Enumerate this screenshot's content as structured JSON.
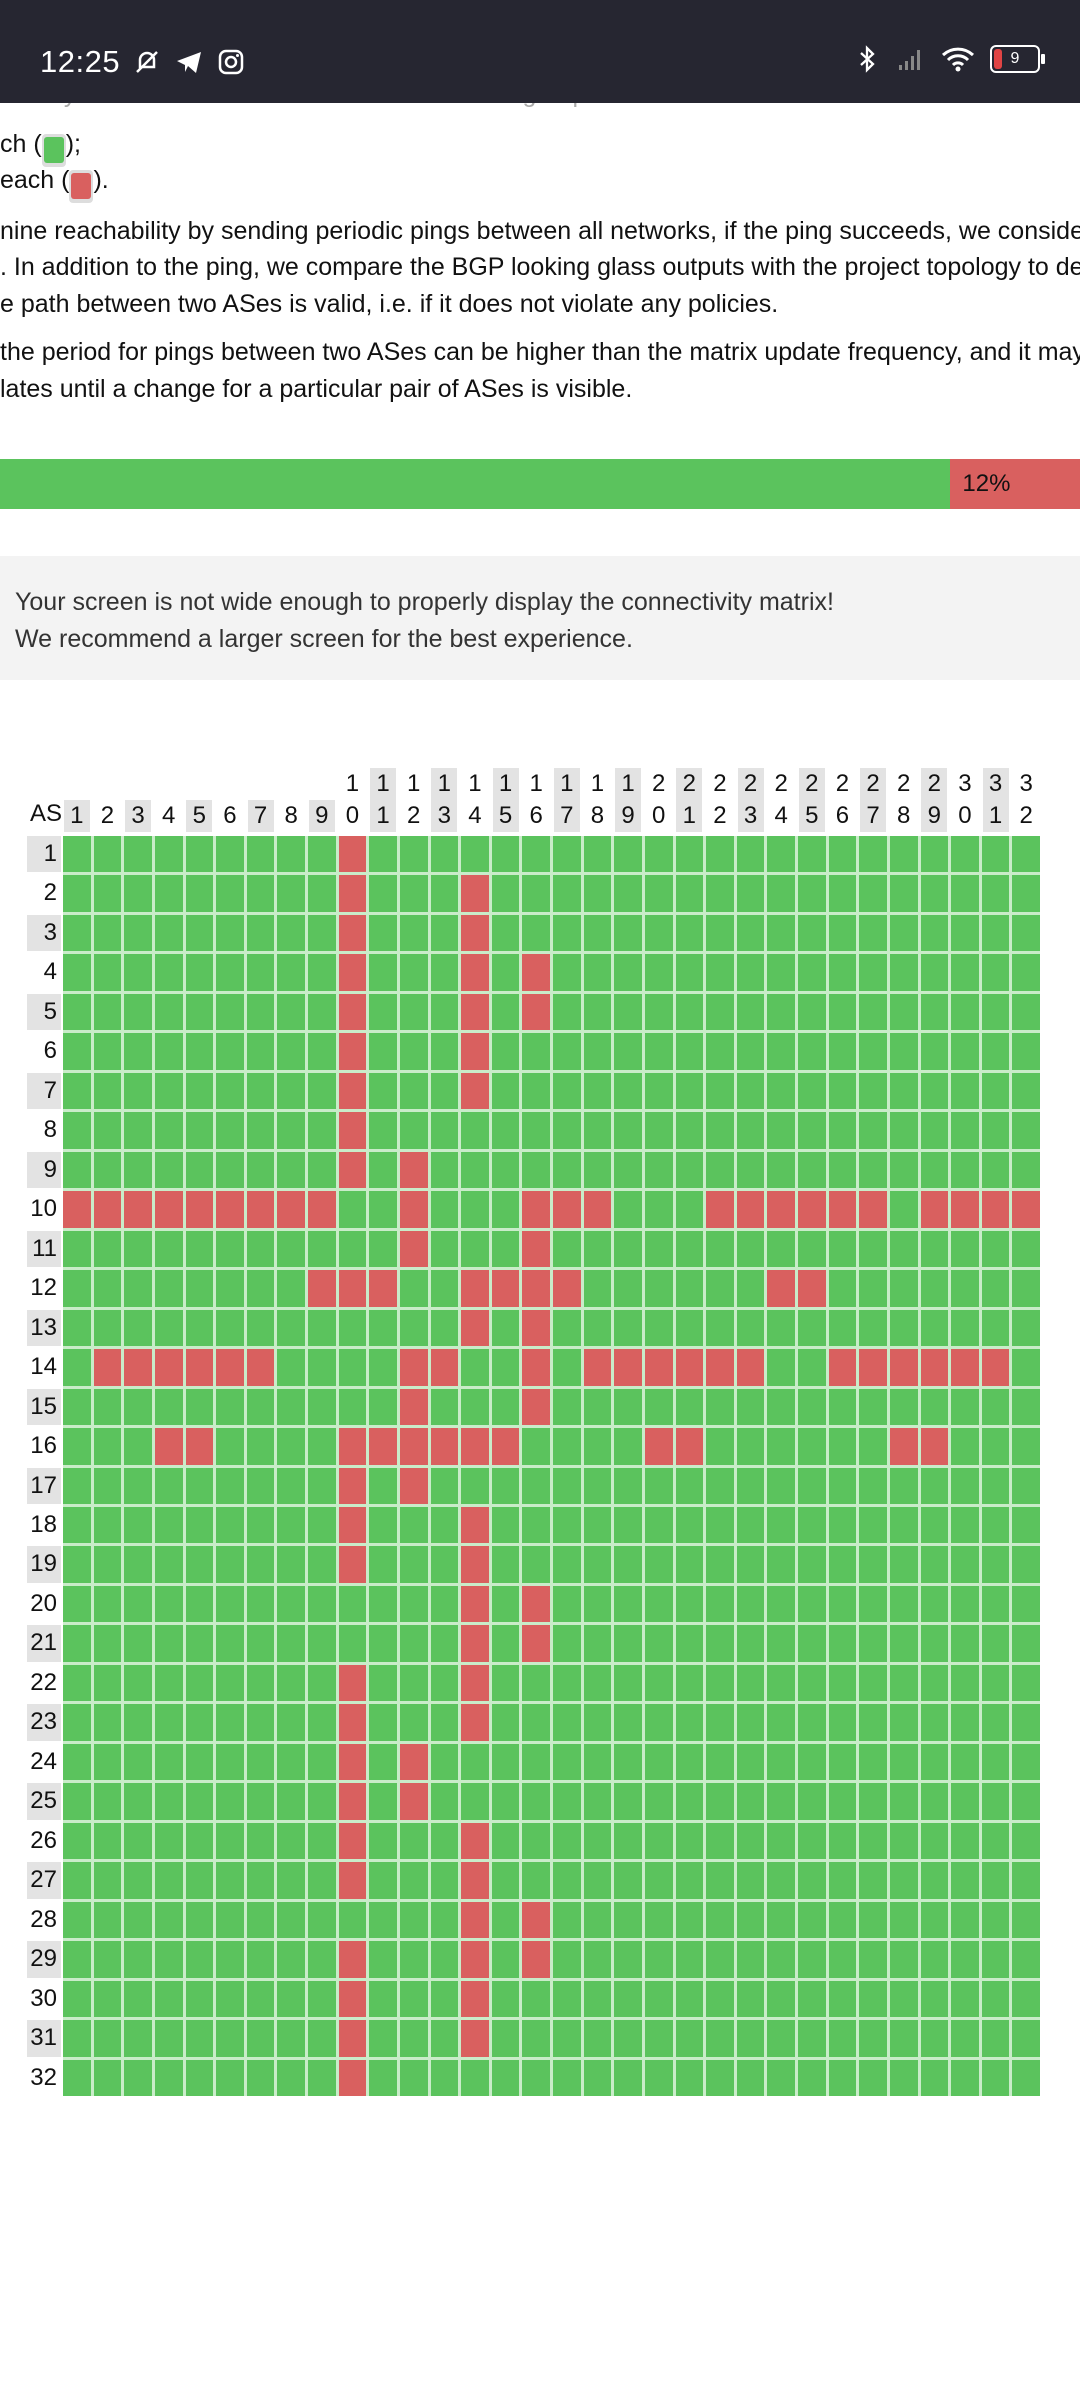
{
  "status_bar": {
    "time": "12:25",
    "left_icons": [
      "silent-bell-icon",
      "telegram-icon",
      "instagram-icon"
    ],
    "right_icons": [
      "bluetooth-icon",
      "signal-icon",
      "wifi-icon"
    ],
    "battery": "9"
  },
  "text": {
    "cutoff_line": "ectivity matrix indicates the networks that each group",
    "legend_ok_prefix": "ch (",
    "legend_ok_suffix": ");",
    "legend_bad_prefix": "each (",
    "legend_bad_suffix": ").",
    "p1_l1": "nine reachability by sending periodic pings between all networks, if the ping succeeds, we consider th",
    "p1_l2": ". In addition to the ping, we compare the BGP looking glass outputs with the project topology to deter",
    "p1_l3": "e path between two ASes is valid, i.e. if it does not violate any policies.",
    "p2_l1": "the period for pings between two ASes can be higher than the matrix update frequency, and it may ta",
    "p2_l2": "lates until a change for a particular pair of ASes is visible."
  },
  "progress": {
    "ok_fraction": 0.88,
    "bad_label": "12%"
  },
  "notice": {
    "line1": "Your screen is not wide enough to properly display the connectivity matrix!",
    "line2": "We recommend a larger screen for the best experience."
  },
  "matrix": {
    "corner_label": "AS",
    "size": 32,
    "failed_cells": {
      "1": [
        10
      ],
      "2": [
        10,
        14
      ],
      "3": [
        10,
        14
      ],
      "4": [
        10,
        14,
        16
      ],
      "5": [
        10,
        14,
        16
      ],
      "6": [
        10,
        14
      ],
      "7": [
        10,
        14
      ],
      "8": [
        10
      ],
      "9": [
        10,
        12
      ],
      "10": [
        1,
        2,
        3,
        4,
        5,
        6,
        7,
        8,
        9,
        12,
        16,
        17,
        18,
        22,
        23,
        24,
        25,
        26,
        27,
        29,
        30,
        31,
        32
      ],
      "11": [
        12,
        16
      ],
      "12": [
        9,
        10,
        11,
        14,
        15,
        16,
        17,
        24,
        25
      ],
      "13": [
        14,
        16
      ],
      "14": [
        2,
        3,
        4,
        5,
        6,
        7,
        12,
        13,
        16,
        18,
        19,
        20,
        21,
        22,
        23,
        26,
        27,
        28,
        29,
        30,
        31
      ],
      "15": [
        12,
        16
      ],
      "16": [
        4,
        5,
        10,
        11,
        12,
        13,
        14,
        15,
        20,
        21,
        28,
        29
      ],
      "17": [
        10,
        12
      ],
      "18": [
        10,
        14
      ],
      "19": [
        10,
        14
      ],
      "20": [
        14,
        16
      ],
      "21": [
        14,
        16
      ],
      "22": [
        10,
        14
      ],
      "23": [
        10,
        14
      ],
      "24": [
        10,
        12
      ],
      "25": [
        10,
        12
      ],
      "26": [
        10,
        14
      ],
      "27": [
        10,
        14
      ],
      "28": [
        14,
        16
      ],
      "29": [
        10,
        14,
        16
      ],
      "30": [
        10,
        14
      ],
      "31": [
        10,
        14
      ],
      "32": [
        10
      ]
    },
    "colors": {
      "ok": "#5bc35d",
      "bad": "#d9605f"
    }
  }
}
